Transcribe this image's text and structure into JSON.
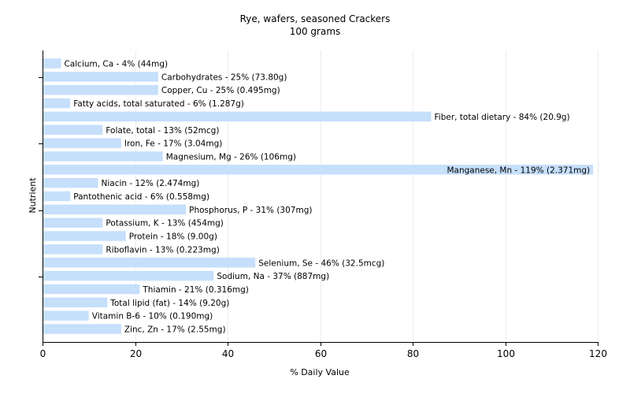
{
  "chart_data": {
    "type": "bar",
    "orientation": "horizontal",
    "title": "Rye, wafers, seasoned Crackers",
    "subtitle": "100 grams",
    "xlabel": "% Daily Value",
    "ylabel": "Nutrient",
    "xlim": [
      0,
      120
    ],
    "xticks": [
      0,
      20,
      40,
      60,
      80,
      100,
      120
    ],
    "grid": true,
    "bar_color": "#c6dffb",
    "categories": [
      "Calcium, Ca",
      "Carbohydrates",
      "Copper, Cu",
      "Fatty acids, total saturated",
      "Fiber, total dietary",
      "Folate, total",
      "Iron, Fe",
      "Magnesium, Mg",
      "Manganese, Mn",
      "Niacin",
      "Pantothenic acid",
      "Phosphorus, P",
      "Potassium, K",
      "Protein",
      "Riboflavin",
      "Selenium, Se",
      "Sodium, Na",
      "Thiamin",
      "Total lipid (fat)",
      "Vitamin B-6",
      "Zinc, Zn"
    ],
    "values": [
      4,
      25,
      25,
      6,
      84,
      13,
      17,
      26,
      119,
      12,
      6,
      31,
      13,
      18,
      13,
      46,
      37,
      21,
      14,
      10,
      17
    ],
    "labels": [
      "Calcium, Ca - 4% (44mg)",
      "Carbohydrates - 25% (73.80g)",
      "Copper, Cu - 25% (0.495mg)",
      "Fatty acids, total saturated - 6% (1.287g)",
      "Fiber, total dietary - 84% (20.9g)",
      "Folate, total - 13% (52mcg)",
      "Iron, Fe - 17% (3.04mg)",
      "Magnesium, Mg - 26% (106mg)",
      "Manganese, Mn - 119% (2.371mg)",
      "Niacin - 12% (2.474mg)",
      "Pantothenic acid - 6% (0.558mg)",
      "Phosphorus, P - 31% (307mg)",
      "Potassium, K - 13% (454mg)",
      "Protein - 18% (9.00g)",
      "Riboflavin - 13% (0.223mg)",
      "Selenium, Se - 46% (32.5mcg)",
      "Sodium, Na - 37% (887mg)",
      "Thiamin - 21% (0.316mg)",
      "Total lipid (fat) - 14% (9.20g)",
      "Vitamin B-6 - 10% (0.190mg)",
      "Zinc, Zn - 17% (2.55mg)"
    ]
  }
}
